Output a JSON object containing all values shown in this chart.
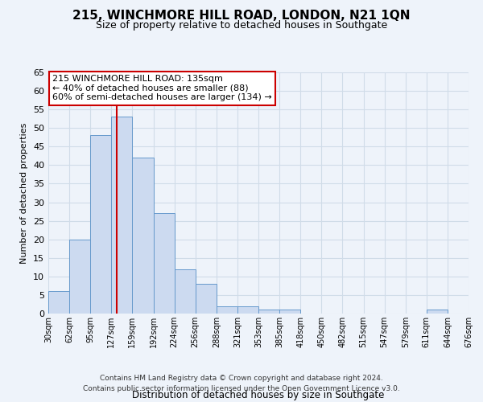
{
  "title": "215, WINCHMORE HILL ROAD, LONDON, N21 1QN",
  "subtitle": "Size of property relative to detached houses in Southgate",
  "xlabel": "Distribution of detached houses by size in Southgate",
  "ylabel": "Number of detached properties",
  "bar_color": "#ccdaf0",
  "bar_edge_color": "#6699cc",
  "bar_values": [
    6,
    20,
    48,
    53,
    42,
    27,
    12,
    8,
    2,
    2,
    1,
    1,
    0,
    0,
    0,
    0,
    0,
    0,
    1,
    0
  ],
  "x_labels": [
    "30sqm",
    "62sqm",
    "95sqm",
    "127sqm",
    "159sqm",
    "192sqm",
    "224sqm",
    "256sqm",
    "288sqm",
    "321sqm",
    "353sqm",
    "385sqm",
    "418sqm",
    "450sqm",
    "482sqm",
    "515sqm",
    "547sqm",
    "579sqm",
    "611sqm",
    "644sqm",
    "676sqm"
  ],
  "vline_x": 3.25,
  "vline_color": "#cc0000",
  "annotation_text": "215 WINCHMORE HILL ROAD: 135sqm\n← 40% of detached houses are smaller (88)\n60% of semi-detached houses are larger (134) →",
  "annotation_box_color": "#ffffff",
  "annotation_box_edge": "#cc0000",
  "ylim": [
    0,
    65
  ],
  "yticks": [
    0,
    5,
    10,
    15,
    20,
    25,
    30,
    35,
    40,
    45,
    50,
    55,
    60,
    65
  ],
  "grid_color": "#d0dce8",
  "footer_line1": "Contains HM Land Registry data © Crown copyright and database right 2024.",
  "footer_line2": "Contains public sector information licensed under the Open Government Licence v3.0.",
  "background_color": "#eef3fa"
}
